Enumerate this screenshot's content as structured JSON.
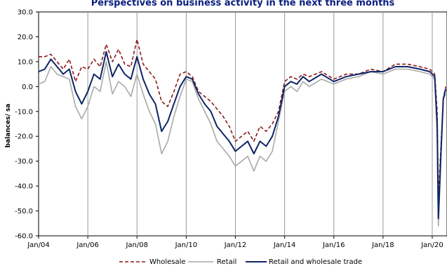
{
  "chart_data": {
    "type": "line",
    "title": "Perspectives on business activity in the next three months",
    "ylabel": "balances/ sa",
    "xlabel": "",
    "ylim": [
      -60,
      30
    ],
    "yticks": [
      "30.0",
      "20.0",
      "10.0",
      "0.0",
      "-10.0",
      "-20.0",
      "-30.0",
      "-40.0",
      "-50.0",
      "-60.0"
    ],
    "xticks": [
      "Jan/04",
      "Jan/06",
      "Jan/08",
      "Jan/10",
      "Jan/12",
      "Jan/14",
      "Jan/16",
      "Jan/18",
      "Jan/20"
    ],
    "grid": "vertical",
    "legend_position": "bottom",
    "colors": {
      "Wholesale": "#8b1a1a",
      "Retail": "#a9a9a9",
      "Retail and wholesale trade": "#0d2566"
    },
    "x_note": "x = fractional year",
    "series": [
      {
        "name": "Wholesale",
        "style": "dashed",
        "x": [
          2004.0,
          2004.25,
          2004.5,
          2004.75,
          2005.0,
          2005.25,
          2005.5,
          2005.75,
          2006.0,
          2006.25,
          2006.5,
          2006.75,
          2007.0,
          2007.25,
          2007.5,
          2007.75,
          2008.0,
          2008.25,
          2008.5,
          2008.75,
          2009.0,
          2009.25,
          2009.5,
          2009.75,
          2010.0,
          2010.25,
          2010.5,
          2010.75,
          2011.0,
          2011.25,
          2011.5,
          2011.75,
          2012.0,
          2012.25,
          2012.5,
          2012.75,
          2013.0,
          2013.25,
          2013.5,
          2013.75,
          2014.0,
          2014.25,
          2014.5,
          2014.75,
          2015.0,
          2015.5,
          2016.0,
          2016.5,
          2017.0,
          2017.5,
          2018.0,
          2018.5,
          2019.0,
          2019.5,
          2019.9,
          2020.0,
          2020.1,
          2020.2,
          2020.25,
          2020.35,
          2020.45,
          2020.55
        ],
        "y": [
          12,
          12,
          13,
          10,
          7,
          11,
          2,
          8,
          7,
          11,
          8,
          17,
          10,
          15,
          9,
          8,
          19,
          9,
          6,
          3,
          -6,
          -8,
          -2,
          5,
          6,
          4,
          -2,
          -4,
          -6,
          -9,
          -12,
          -16,
          -22,
          -20,
          -18,
          -22,
          -16,
          -18,
          -15,
          -10,
          2,
          4,
          3,
          5,
          4,
          6,
          3,
          5,
          5,
          7,
          6,
          9,
          9,
          8,
          7,
          6,
          5,
          -10,
          -45,
          -25,
          -5,
          0
        ]
      },
      {
        "name": "Retail",
        "style": "solid",
        "x": [
          2004.0,
          2004.25,
          2004.5,
          2004.75,
          2005.0,
          2005.25,
          2005.5,
          2005.75,
          2006.0,
          2006.25,
          2006.5,
          2006.75,
          2007.0,
          2007.25,
          2007.5,
          2007.75,
          2008.0,
          2008.25,
          2008.5,
          2008.75,
          2009.0,
          2009.25,
          2009.5,
          2009.75,
          2010.0,
          2010.25,
          2010.5,
          2010.75,
          2011.0,
          2011.25,
          2011.5,
          2011.75,
          2012.0,
          2012.25,
          2012.5,
          2012.75,
          2013.0,
          2013.25,
          2013.5,
          2013.75,
          2014.0,
          2014.25,
          2014.5,
          2014.75,
          2015.0,
          2015.5,
          2016.0,
          2016.5,
          2017.0,
          2017.5,
          2018.0,
          2018.5,
          2019.0,
          2019.5,
          2019.9,
          2020.0,
          2020.1,
          2020.2,
          2020.25,
          2020.35,
          2020.45,
          2020.55
        ],
        "y": [
          1,
          2,
          8,
          5,
          4,
          3,
          -8,
          -13,
          -8,
          0,
          -2,
          10,
          -3,
          2,
          0,
          -4,
          5,
          -3,
          -10,
          -15,
          -27,
          -22,
          -12,
          -4,
          3,
          2,
          -5,
          -10,
          -15,
          -22,
          -25,
          -28,
          -32,
          -30,
          -28,
          -34,
          -28,
          -30,
          -26,
          -14,
          -2,
          0,
          -2,
          2,
          0,
          3,
          1,
          3,
          4,
          6,
          5,
          7,
          7,
          6,
          5,
          4,
          3,
          -20,
          -56,
          -30,
          -5,
          -3
        ]
      },
      {
        "name": "Retail and wholesale trade",
        "style": "solid",
        "x": [
          2004.0,
          2004.25,
          2004.5,
          2004.75,
          2005.0,
          2005.25,
          2005.5,
          2005.75,
          2006.0,
          2006.25,
          2006.5,
          2006.75,
          2007.0,
          2007.25,
          2007.5,
          2007.75,
          2008.0,
          2008.25,
          2008.5,
          2008.75,
          2009.0,
          2009.25,
          2009.5,
          2009.75,
          2010.0,
          2010.25,
          2010.5,
          2010.75,
          2011.0,
          2011.25,
          2011.5,
          2011.75,
          2012.0,
          2012.25,
          2012.5,
          2012.75,
          2013.0,
          2013.25,
          2013.5,
          2013.75,
          2014.0,
          2014.25,
          2014.5,
          2014.75,
          2015.0,
          2015.5,
          2016.0,
          2016.5,
          2017.0,
          2017.5,
          2018.0,
          2018.5,
          2019.0,
          2019.5,
          2019.9,
          2020.0,
          2020.1,
          2020.2,
          2020.25,
          2020.35,
          2020.45,
          2020.55
        ],
        "y": [
          6,
          7,
          11,
          8,
          5,
          7,
          -2,
          -7,
          -2,
          5,
          3,
          14,
          4,
          9,
          5,
          3,
          12,
          3,
          -3,
          -7,
          -18,
          -14,
          -7,
          0,
          4,
          3,
          -3,
          -7,
          -10,
          -16,
          -19,
          -22,
          -26,
          -24,
          -22,
          -27,
          -22,
          -24,
          -20,
          -12,
          0,
          2,
          1,
          4,
          2,
          5,
          2,
          4,
          5,
          6,
          6,
          8,
          8,
          7,
          6,
          5,
          4,
          -15,
          -53,
          -28,
          -5,
          -1
        ]
      }
    ],
    "legend": [
      "Wholesale",
      "Retail",
      "Retail and wholesale trade"
    ]
  }
}
